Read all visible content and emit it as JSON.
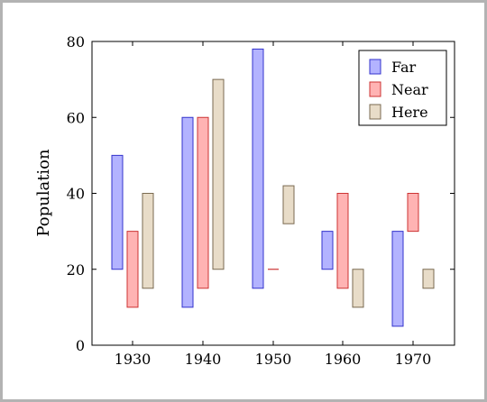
{
  "chart_data": {
    "type": "bar",
    "subtype": "floating-range",
    "title": "",
    "xlabel": "",
    "ylabel": "Population",
    "categories": [
      "1930",
      "1940",
      "1950",
      "1960",
      "1970"
    ],
    "ylim": [
      0,
      80
    ],
    "yticks": [
      0,
      20,
      40,
      60,
      80
    ],
    "grid": false,
    "legend_position": "top-right",
    "series": [
      {
        "name": "Far",
        "fill": "#b3b3ff",
        "stroke": "#3333cc",
        "ranges": [
          [
            20,
            50
          ],
          [
            10,
            60
          ],
          [
            15,
            78
          ],
          [
            20,
            30
          ],
          [
            5,
            30
          ]
        ]
      },
      {
        "name": "Near",
        "fill": "#ffb3b3",
        "stroke": "#cc3333",
        "ranges": [
          [
            10,
            30
          ],
          [
            15,
            60
          ],
          [
            20,
            20
          ],
          [
            15,
            40
          ],
          [
            30,
            40
          ]
        ]
      },
      {
        "name": "Here",
        "fill": "#e8dcc8",
        "stroke": "#7a6a50",
        "ranges": [
          [
            15,
            40
          ],
          [
            20,
            70
          ],
          [
            32,
            42
          ],
          [
            10,
            20
          ],
          [
            15,
            20
          ]
        ]
      }
    ]
  }
}
